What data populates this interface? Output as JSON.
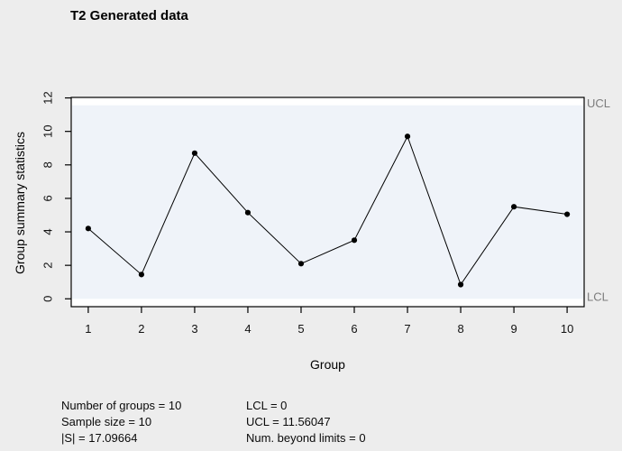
{
  "title": "T2 Generated data",
  "chart_data": {
    "type": "line",
    "title": "T2 Generated data",
    "xlabel": "Group",
    "ylabel": "Group summary statistics",
    "x": [
      1,
      2,
      3,
      4,
      5,
      6,
      7,
      8,
      9,
      10
    ],
    "values": [
      4.2,
      1.45,
      8.7,
      5.15,
      2.1,
      3.5,
      9.7,
      0.85,
      5.5,
      5.05
    ],
    "xticks": [
      1,
      2,
      3,
      4,
      5,
      6,
      7,
      8,
      9,
      10
    ],
    "yticks": [
      0,
      2,
      4,
      6,
      8,
      10,
      12
    ],
    "xlim": [
      0.68,
      10.32
    ],
    "ylim": [
      -0.47,
      12.03
    ],
    "ucl": 11.56047,
    "lcl": 0,
    "ucl_label": "UCL",
    "lcl_label": "LCL",
    "grid": false,
    "legend": "none",
    "marker": "filled-circle",
    "line_color": "#000000",
    "point_color": "#000000",
    "band_color": "#eff3f9",
    "plot_bg_color": "#ffffff",
    "outer_bg_color": "#ededed",
    "limit_label_color": "#7c7c7c",
    "tick_label_color": "#111111"
  },
  "stats": {
    "left": [
      "Number of groups = 10",
      "Sample size = 10",
      "|S| = 17.09664"
    ],
    "right": [
      "LCL = 0",
      "UCL = 11.56047",
      "Num. beyond limits = 0"
    ]
  }
}
